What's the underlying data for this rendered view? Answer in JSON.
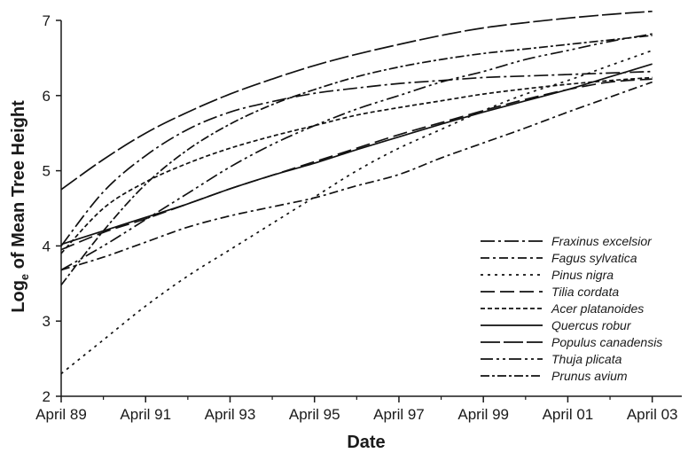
{
  "chart_data": {
    "type": "line",
    "xlabel": "Date",
    "ylabel": "Logₑ of Mean Tree Height",
    "ylabel_main": "Log",
    "ylabel_sub": "e",
    "ylabel_rest": " of Mean Tree Height",
    "xlim": [
      0,
      14.7
    ],
    "ylim": [
      2,
      7
    ],
    "x_ticks": [
      {
        "value": 0,
        "label": "April 89"
      },
      {
        "value": 2,
        "label": "April 91"
      },
      {
        "value": 4,
        "label": "April 93"
      },
      {
        "value": 6,
        "label": "April 95"
      },
      {
        "value": 8,
        "label": "April 97"
      },
      {
        "value": 10,
        "label": "April 99"
      },
      {
        "value": 12,
        "label": "April 01"
      },
      {
        "value": 14,
        "label": "April 03"
      }
    ],
    "y_ticks": [
      {
        "value": 2,
        "label": "2"
      },
      {
        "value": 3,
        "label": "3"
      },
      {
        "value": 4,
        "label": "4"
      },
      {
        "value": 5,
        "label": "5"
      },
      {
        "value": 6,
        "label": "6"
      },
      {
        "value": 7,
        "label": "7"
      }
    ],
    "grid": false,
    "legend_position": "bottom-right",
    "series": [
      {
        "name": "Fraxinus excelsior",
        "dash": "16,4,3,4",
        "x": [
          0,
          1,
          2,
          3,
          4,
          5,
          6,
          7,
          8,
          9,
          10,
          11,
          12,
          13,
          14
        ],
        "y": [
          4.0,
          4.72,
          5.2,
          5.55,
          5.78,
          5.92,
          6.03,
          6.1,
          6.16,
          6.2,
          6.24,
          6.26,
          6.28,
          6.3,
          6.32
        ]
      },
      {
        "name": "Fagus sylvatica",
        "dash": "10,4,3,4",
        "x": [
          0,
          1,
          2,
          3,
          4,
          5,
          6,
          7,
          8,
          9,
          10,
          11,
          12,
          13,
          14
        ],
        "y": [
          3.68,
          3.85,
          4.05,
          4.25,
          4.4,
          4.52,
          4.64,
          4.8,
          4.95,
          5.17,
          5.37,
          5.57,
          5.78,
          5.98,
          6.18
        ]
      },
      {
        "name": "Pinus nigra",
        "dash": "3,5",
        "x": [
          0,
          1,
          2,
          3,
          4,
          5,
          6,
          7,
          8,
          9,
          10,
          11,
          12,
          13,
          14
        ],
        "y": [
          2.3,
          2.75,
          3.2,
          3.6,
          3.95,
          4.3,
          4.65,
          5.0,
          5.3,
          5.55,
          5.8,
          6.02,
          6.2,
          6.4,
          6.6
        ]
      },
      {
        "name": "Tilia cordata",
        "dash": "16,6",
        "x": [
          0,
          1,
          2,
          3,
          4,
          5,
          6,
          7,
          8,
          9,
          10,
          11,
          12,
          13,
          14
        ],
        "y": [
          3.95,
          4.18,
          4.36,
          4.56,
          4.76,
          4.94,
          5.12,
          5.3,
          5.48,
          5.64,
          5.8,
          5.95,
          6.08,
          6.18,
          6.22
        ]
      },
      {
        "name": "Acer platanoides",
        "dash": "5,3",
        "x": [
          0,
          1,
          2,
          3,
          4,
          5,
          6,
          7,
          8,
          9,
          10,
          11,
          12,
          13,
          14
        ],
        "y": [
          3.9,
          4.5,
          4.85,
          5.1,
          5.3,
          5.46,
          5.6,
          5.74,
          5.84,
          5.93,
          6.02,
          6.09,
          6.15,
          6.2,
          6.24
        ]
      },
      {
        "name": "Quercus robur",
        "dash": "",
        "x": [
          0,
          1,
          2,
          3,
          4,
          5,
          6,
          7,
          8,
          9,
          10,
          11,
          12,
          13,
          14
        ],
        "y": [
          4.02,
          4.2,
          4.38,
          4.56,
          4.76,
          4.94,
          5.1,
          5.28,
          5.45,
          5.62,
          5.78,
          5.93,
          6.08,
          6.25,
          6.42
        ]
      },
      {
        "name": "Populus canadensis",
        "dash": "22,4",
        "x": [
          0,
          1,
          2,
          3,
          4,
          5,
          6,
          7,
          8,
          9,
          10,
          11,
          12,
          13,
          14
        ],
        "y": [
          4.75,
          5.15,
          5.5,
          5.78,
          6.02,
          6.22,
          6.4,
          6.55,
          6.68,
          6.8,
          6.9,
          6.97,
          7.03,
          7.08,
          7.12
        ]
      },
      {
        "name": "Thuja plicata",
        "dash": "14,4,3,4,3,4",
        "x": [
          0,
          1,
          2,
          3,
          4,
          5,
          6,
          7,
          8,
          9,
          10,
          11,
          12,
          13,
          14
        ],
        "y": [
          3.68,
          4.0,
          4.35,
          4.7,
          5.05,
          5.35,
          5.6,
          5.82,
          6.0,
          6.18,
          6.32,
          6.48,
          6.6,
          6.72,
          6.82
        ]
      },
      {
        "name": "Prunus avium",
        "dash": "10,3,3,3",
        "x": [
          0,
          1,
          2,
          3,
          4,
          5,
          6,
          7,
          8,
          9,
          10,
          11,
          12,
          13,
          14
        ],
        "y": [
          3.48,
          4.2,
          4.82,
          5.28,
          5.62,
          5.88,
          6.08,
          6.25,
          6.38,
          6.48,
          6.56,
          6.62,
          6.68,
          6.74,
          6.8
        ]
      }
    ]
  }
}
